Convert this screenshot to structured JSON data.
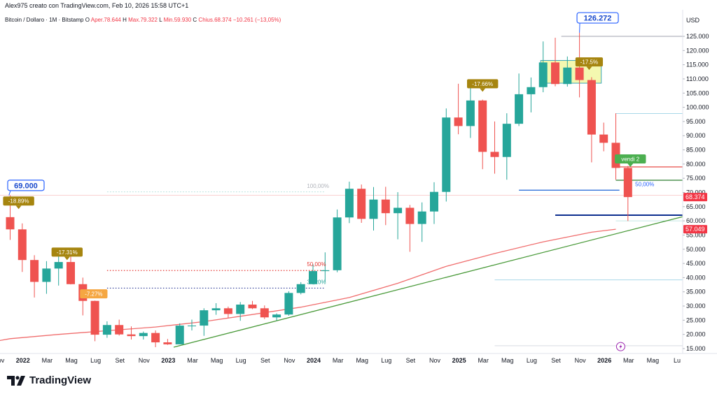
{
  "header": {
    "byline": "Alex975 creato con TradingView.com, Feb 10, 2026 15:58 UTC+1"
  },
  "legend": {
    "symbol": "Bitcoin / Dollaro · 1M · Bitstamp",
    "open_label": "O",
    "open_text": "Aper.78.644",
    "high_label": "H",
    "high_text": "Max.79.322",
    "low_label": "L",
    "low_text": "Min.59.930",
    "close_label": "C",
    "close_text": "Chius.68.374",
    "change_text": "−10.261 (−13,05%)"
  },
  "branding": {
    "logo_text": "TradingView"
  },
  "colors": {
    "up": "#26a69a",
    "down": "#ef5350",
    "ma": "#f06d6d",
    "trendline": "#4a9a3a",
    "axis_text": "#131722",
    "label_gold": "#a6850f",
    "label_green": "#4caf50",
    "price_label_blue": "#2962ff",
    "current_price": "#f23645"
  },
  "chart_data": {
    "type": "candlestick",
    "currency": "USD",
    "interval": "1M",
    "ylim": [
      13000,
      135000
    ],
    "y_ticks": [
      15000,
      20000,
      25000,
      30000,
      35000,
      40000,
      45000,
      50000,
      55000,
      60000,
      65000,
      70000,
      75000,
      80000,
      85000,
      90000,
      95000,
      100000,
      105000,
      110000,
      115000,
      120000,
      125000
    ],
    "y_tick_labels": [
      "15.000",
      "20.000",
      "25.000",
      "30.000",
      "35.000",
      "40.000",
      "45.000",
      "50.000",
      "55.000",
      "60.000",
      "65.000",
      "70.000",
      "75.000",
      "80.000",
      "85.000",
      "90.000",
      "95.000",
      "100.000",
      "105.000",
      "110.000",
      "115.000",
      "120.000",
      "125.000"
    ],
    "y_axis_title": "USD",
    "x_ticks": [
      {
        "i": -1,
        "label": "Nov"
      },
      {
        "i": 1,
        "label": "2022"
      },
      {
        "i": 3,
        "label": "Mar"
      },
      {
        "i": 5,
        "label": "Mag"
      },
      {
        "i": 7,
        "label": "Lug"
      },
      {
        "i": 9,
        "label": "Set"
      },
      {
        "i": 11,
        "label": "Nov"
      },
      {
        "i": 13,
        "label": "2023"
      },
      {
        "i": 15,
        "label": "Mar"
      },
      {
        "i": 17,
        "label": "Mag"
      },
      {
        "i": 19,
        "label": "Lug"
      },
      {
        "i": 21,
        "label": "Set"
      },
      {
        "i": 23,
        "label": "Nov"
      },
      {
        "i": 25,
        "label": "2024"
      },
      {
        "i": 27,
        "label": "Mar"
      },
      {
        "i": 29,
        "label": "Mag"
      },
      {
        "i": 31,
        "label": "Lug"
      },
      {
        "i": 33,
        "label": "Set"
      },
      {
        "i": 35,
        "label": "Nov"
      },
      {
        "i": 37,
        "label": "2025"
      },
      {
        "i": 39,
        "label": "Mar"
      },
      {
        "i": 41,
        "label": "Mag"
      },
      {
        "i": 43,
        "label": "Lug"
      },
      {
        "i": 45,
        "label": "Set"
      },
      {
        "i": 47,
        "label": "Nov"
      },
      {
        "i": 49,
        "label": "2026"
      },
      {
        "i": 51,
        "label": "Mar"
      },
      {
        "i": 53,
        "label": "Mag"
      },
      {
        "i": 55,
        "label": "Lu"
      }
    ],
    "candles": [
      {
        "t": "2021-11",
        "o": 61300,
        "h": 69000,
        "l": 53300,
        "c": 57000
      },
      {
        "t": "2021-12",
        "o": 57000,
        "h": 59100,
        "l": 42000,
        "c": 46200
      },
      {
        "t": "2022-01",
        "o": 46200,
        "h": 47900,
        "l": 33000,
        "c": 38500
      },
      {
        "t": "2022-02",
        "o": 38500,
        "h": 45800,
        "l": 34300,
        "c": 43200
      },
      {
        "t": "2022-03",
        "o": 43200,
        "h": 48200,
        "l": 37200,
        "c": 45500
      },
      {
        "t": "2022-04",
        "o": 45500,
        "h": 47500,
        "l": 37600,
        "c": 37700
      },
      {
        "t": "2022-05",
        "o": 37700,
        "h": 40000,
        "l": 26700,
        "c": 31800
      },
      {
        "t": "2022-06",
        "o": 31800,
        "h": 31900,
        "l": 17600,
        "c": 19900
      },
      {
        "t": "2022-07",
        "o": 19900,
        "h": 24600,
        "l": 18800,
        "c": 23300
      },
      {
        "t": "2022-08",
        "o": 23300,
        "h": 25200,
        "l": 19600,
        "c": 20000
      },
      {
        "t": "2022-09",
        "o": 20000,
        "h": 22800,
        "l": 18200,
        "c": 19400
      },
      {
        "t": "2022-10",
        "o": 19400,
        "h": 21000,
        "l": 18200,
        "c": 20500
      },
      {
        "t": "2022-11",
        "o": 20500,
        "h": 21400,
        "l": 15500,
        "c": 17200
      },
      {
        "t": "2022-12",
        "o": 17200,
        "h": 18400,
        "l": 16300,
        "c": 16500
      },
      {
        "t": "2023-01",
        "o": 16500,
        "h": 23900,
        "l": 16500,
        "c": 23100
      },
      {
        "t": "2023-02",
        "o": 23100,
        "h": 25200,
        "l": 21400,
        "c": 23100
      },
      {
        "t": "2023-03",
        "o": 23100,
        "h": 29200,
        "l": 19500,
        "c": 28500
      },
      {
        "t": "2023-04",
        "o": 28500,
        "h": 31000,
        "l": 26900,
        "c": 29200
      },
      {
        "t": "2023-05",
        "o": 29200,
        "h": 29800,
        "l": 25800,
        "c": 27200
      },
      {
        "t": "2023-06",
        "o": 27200,
        "h": 31400,
        "l": 24800,
        "c": 30500
      },
      {
        "t": "2023-07",
        "o": 30500,
        "h": 31800,
        "l": 28900,
        "c": 29200
      },
      {
        "t": "2023-08",
        "o": 29200,
        "h": 30200,
        "l": 25400,
        "c": 26000
      },
      {
        "t": "2023-09",
        "o": 26000,
        "h": 27400,
        "l": 24900,
        "c": 27000
      },
      {
        "t": "2023-10",
        "o": 27000,
        "h": 35200,
        "l": 26600,
        "c": 34600
      },
      {
        "t": "2023-11",
        "o": 34600,
        "h": 38400,
        "l": 34100,
        "c": 37700
      },
      {
        "t": "2023-12",
        "o": 37700,
        "h": 44700,
        "l": 37600,
        "c": 42300
      },
      {
        "t": "2024-01",
        "o": 42300,
        "h": 48900,
        "l": 38500,
        "c": 42600
      },
      {
        "t": "2024-02",
        "o": 42600,
        "h": 64000,
        "l": 41900,
        "c": 61200
      },
      {
        "t": "2024-03",
        "o": 61200,
        "h": 73800,
        "l": 59200,
        "c": 71300
      },
      {
        "t": "2024-04",
        "o": 71300,
        "h": 72800,
        "l": 59300,
        "c": 60700
      },
      {
        "t": "2024-05",
        "o": 60700,
        "h": 71900,
        "l": 56600,
        "c": 67500
      },
      {
        "t": "2024-06",
        "o": 67500,
        "h": 72000,
        "l": 58500,
        "c": 62700
      },
      {
        "t": "2024-07",
        "o": 62700,
        "h": 70100,
        "l": 53500,
        "c": 64600
      },
      {
        "t": "2024-08",
        "o": 64600,
        "h": 65600,
        "l": 49100,
        "c": 58900
      },
      {
        "t": "2024-09",
        "o": 58900,
        "h": 66500,
        "l": 52600,
        "c": 63300
      },
      {
        "t": "2024-10",
        "o": 63300,
        "h": 73600,
        "l": 58900,
        "c": 70200
      },
      {
        "t": "2024-11",
        "o": 70200,
        "h": 99600,
        "l": 66800,
        "c": 96400
      },
      {
        "t": "2024-12",
        "o": 96400,
        "h": 108300,
        "l": 90500,
        "c": 93400
      },
      {
        "t": "2025-01",
        "o": 93400,
        "h": 109500,
        "l": 89200,
        "c": 102400
      },
      {
        "t": "2025-02",
        "o": 102400,
        "h": 102700,
        "l": 78200,
        "c": 84300
      },
      {
        "t": "2025-03",
        "o": 84300,
        "h": 95000,
        "l": 76600,
        "c": 82500
      },
      {
        "t": "2025-04",
        "o": 82500,
        "h": 97900,
        "l": 74500,
        "c": 94200
      },
      {
        "t": "2025-05",
        "o": 94200,
        "h": 111900,
        "l": 93400,
        "c": 104600
      },
      {
        "t": "2025-06",
        "o": 104600,
        "h": 110500,
        "l": 98200,
        "c": 107100
      },
      {
        "t": "2025-07",
        "o": 107100,
        "h": 123200,
        "l": 105300,
        "c": 115800
      },
      {
        "t": "2025-08",
        "o": 115800,
        "h": 124500,
        "l": 107400,
        "c": 108200
      },
      {
        "t": "2025-09",
        "o": 108200,
        "h": 117900,
        "l": 107300,
        "c": 114000
      },
      {
        "t": "2025-10",
        "o": 114000,
        "h": 126272,
        "l": 103500,
        "c": 109600
      },
      {
        "t": "2025-11",
        "o": 109600,
        "h": 110600,
        "l": 80600,
        "c": 90400
      },
      {
        "t": "2025-12",
        "o": 90400,
        "h": 94600,
        "l": 84500,
        "c": 87500
      },
      {
        "t": "2026-01",
        "o": 87500,
        "h": 97900,
        "l": 74500,
        "c": 78644
      },
      {
        "t": "2026-02",
        "o": 78644,
        "h": 79322,
        "l": 59930,
        "c": 68374
      }
    ],
    "moving_average": {
      "points": [
        [
          -2,
          17000
        ],
        [
          0,
          18500
        ],
        [
          4,
          20000
        ],
        [
          8,
          21300
        ],
        [
          12,
          22600
        ],
        [
          16,
          24500
        ],
        [
          20,
          27000
        ],
        [
          24,
          29600
        ],
        [
          28,
          33000
        ],
        [
          32,
          38000
        ],
        [
          36,
          44000
        ],
        [
          40,
          48500
        ],
        [
          44,
          52600
        ],
        [
          48,
          56000
        ],
        [
          50,
          57049
        ]
      ]
    },
    "trendline": {
      "from": [
        13.5,
        15500
      ],
      "to": [
        56,
        62000
      ]
    },
    "horizontal_lines": [
      {
        "id": "ath-line",
        "y": 125000,
        "i_from": 45.5,
        "i_to": 56,
        "color": "#b2b5be",
        "width": 1.2,
        "dash": ""
      },
      {
        "id": "prev-ath-line",
        "y": 69000,
        "i_from": -2,
        "i_to": 56,
        "color": "#f7b3b6",
        "width": 0.7,
        "dash": ""
      },
      {
        "id": "fib-100-line",
        "y": 70200,
        "i_from": 8,
        "i_to": 26,
        "color": "#b2dfdb",
        "width": 0.8,
        "dash": "2 2"
      },
      {
        "id": "fib-50-line",
        "y": 42500,
        "i_from": 8,
        "i_to": 26,
        "color": "#e53935",
        "width": 1.2,
        "dash": "1.5 2.5"
      },
      {
        "id": "fib-38-line",
        "y": 36300,
        "i_from": 8,
        "i_to": 26,
        "color": "#283593",
        "width": 1.2,
        "dash": "1.5 2.5"
      },
      {
        "id": "level-98k-line",
        "y": 97800,
        "i_from": 50,
        "i_to": 56,
        "color": "#a8d8e8",
        "width": 1,
        "dash": ""
      },
      {
        "id": "level-79k-line",
        "y": 79000,
        "i_from": 50,
        "i_to": 56,
        "color": "#e53935",
        "width": 1.2,
        "dash": ""
      },
      {
        "id": "level-74k-line",
        "y": 74300,
        "i_from": 50,
        "i_to": 56,
        "color": "#2e7d32",
        "width": 1.2,
        "dash": ""
      },
      {
        "id": "fib-50-recent-line",
        "y": 70800,
        "i_from": 42,
        "i_to": 50.3,
        "color": "#1e63d6",
        "width": 1.2,
        "dash": ""
      },
      {
        "id": "support-62k-line",
        "y": 62000,
        "i_from": 45,
        "i_to": 56,
        "color": "#0d2e8f",
        "width": 2,
        "dash": ""
      },
      {
        "id": "level-39k-line",
        "y": 39200,
        "i_from": 40,
        "i_to": 56,
        "color": "#a8d8e8",
        "width": 1,
        "dash": ""
      },
      {
        "id": "level-60k-line",
        "y": 60000,
        "i_from": 50,
        "i_to": 56,
        "color": "#b2dfdb",
        "width": 0.8,
        "dash": ""
      },
      {
        "id": "bottom-line",
        "y": 16000,
        "i_from": 40,
        "i_to": 56,
        "color": "#d1d4dc",
        "width": 0.8,
        "dash": ""
      }
    ],
    "level_labels": [
      {
        "id": "fib-100-label",
        "text": "100,00%",
        "i": 24.5,
        "y": 71600,
        "color": "#b0b3ba"
      },
      {
        "id": "fib-50-label",
        "text": "50,00%",
        "i": 24.5,
        "y": 44000,
        "color": "#e53935"
      },
      {
        "id": "fib-38-label",
        "text": "38,20%",
        "i": 24.5,
        "y": 37800,
        "color": "#26a69a"
      },
      {
        "id": "fib-50-recent-label",
        "text": "50,00%",
        "i": 51.6,
        "y": 72200,
        "color": "#2962ff"
      }
    ],
    "pct_callouts": [
      {
        "id": "callout-18-89",
        "text": "-18.89%",
        "i": 0.7,
        "y": 67000,
        "color": "#a6850f",
        "dir": "down"
      },
      {
        "id": "callout-17-31",
        "text": "-17.31%",
        "i": 4.7,
        "y": 49000,
        "color": "#a6850f",
        "dir": "down"
      },
      {
        "id": "callout-7-27",
        "text": "-7.27%",
        "i": 6.9,
        "y": 34300,
        "color": "#f5a742",
        "dir": "none"
      },
      {
        "id": "callout-17-66",
        "text": "-17.66%",
        "i": 39.0,
        "y": 108300,
        "color": "#a6850f",
        "dir": "down"
      },
      {
        "id": "callout-17-5",
        "text": "-17.5%",
        "i": 47.8,
        "y": 116000,
        "color": "#a6850f",
        "dir": "down"
      },
      {
        "id": "callout-vendi",
        "text": "vendi 2",
        "i": 51.2,
        "y": 81800,
        "color": "#4caf50",
        "dir": "down"
      }
    ],
    "price_callouts": [
      {
        "id": "callout-69000",
        "text": "69.000",
        "i": 1.3,
        "y": 72500,
        "anchor_i": -0.1,
        "anchor_y": 69000
      },
      {
        "id": "callout-126272",
        "text": "126.272",
        "i": 48.5,
        "y": 131500,
        "anchor_i": 47.0,
        "anchor_y": 126272
      }
    ],
    "axis_tags": [
      {
        "id": "tag-last-price",
        "text": "68.374",
        "y": 68374,
        "color": "#f23645"
      },
      {
        "id": "tag-ma-value",
        "text": "57.049",
        "y": 57049,
        "color": "#f23645"
      }
    ],
    "highlight_box": {
      "i_from": 43.8,
      "i_to": 48.8,
      "y_from": 108500,
      "y_to": 116500
    }
  }
}
